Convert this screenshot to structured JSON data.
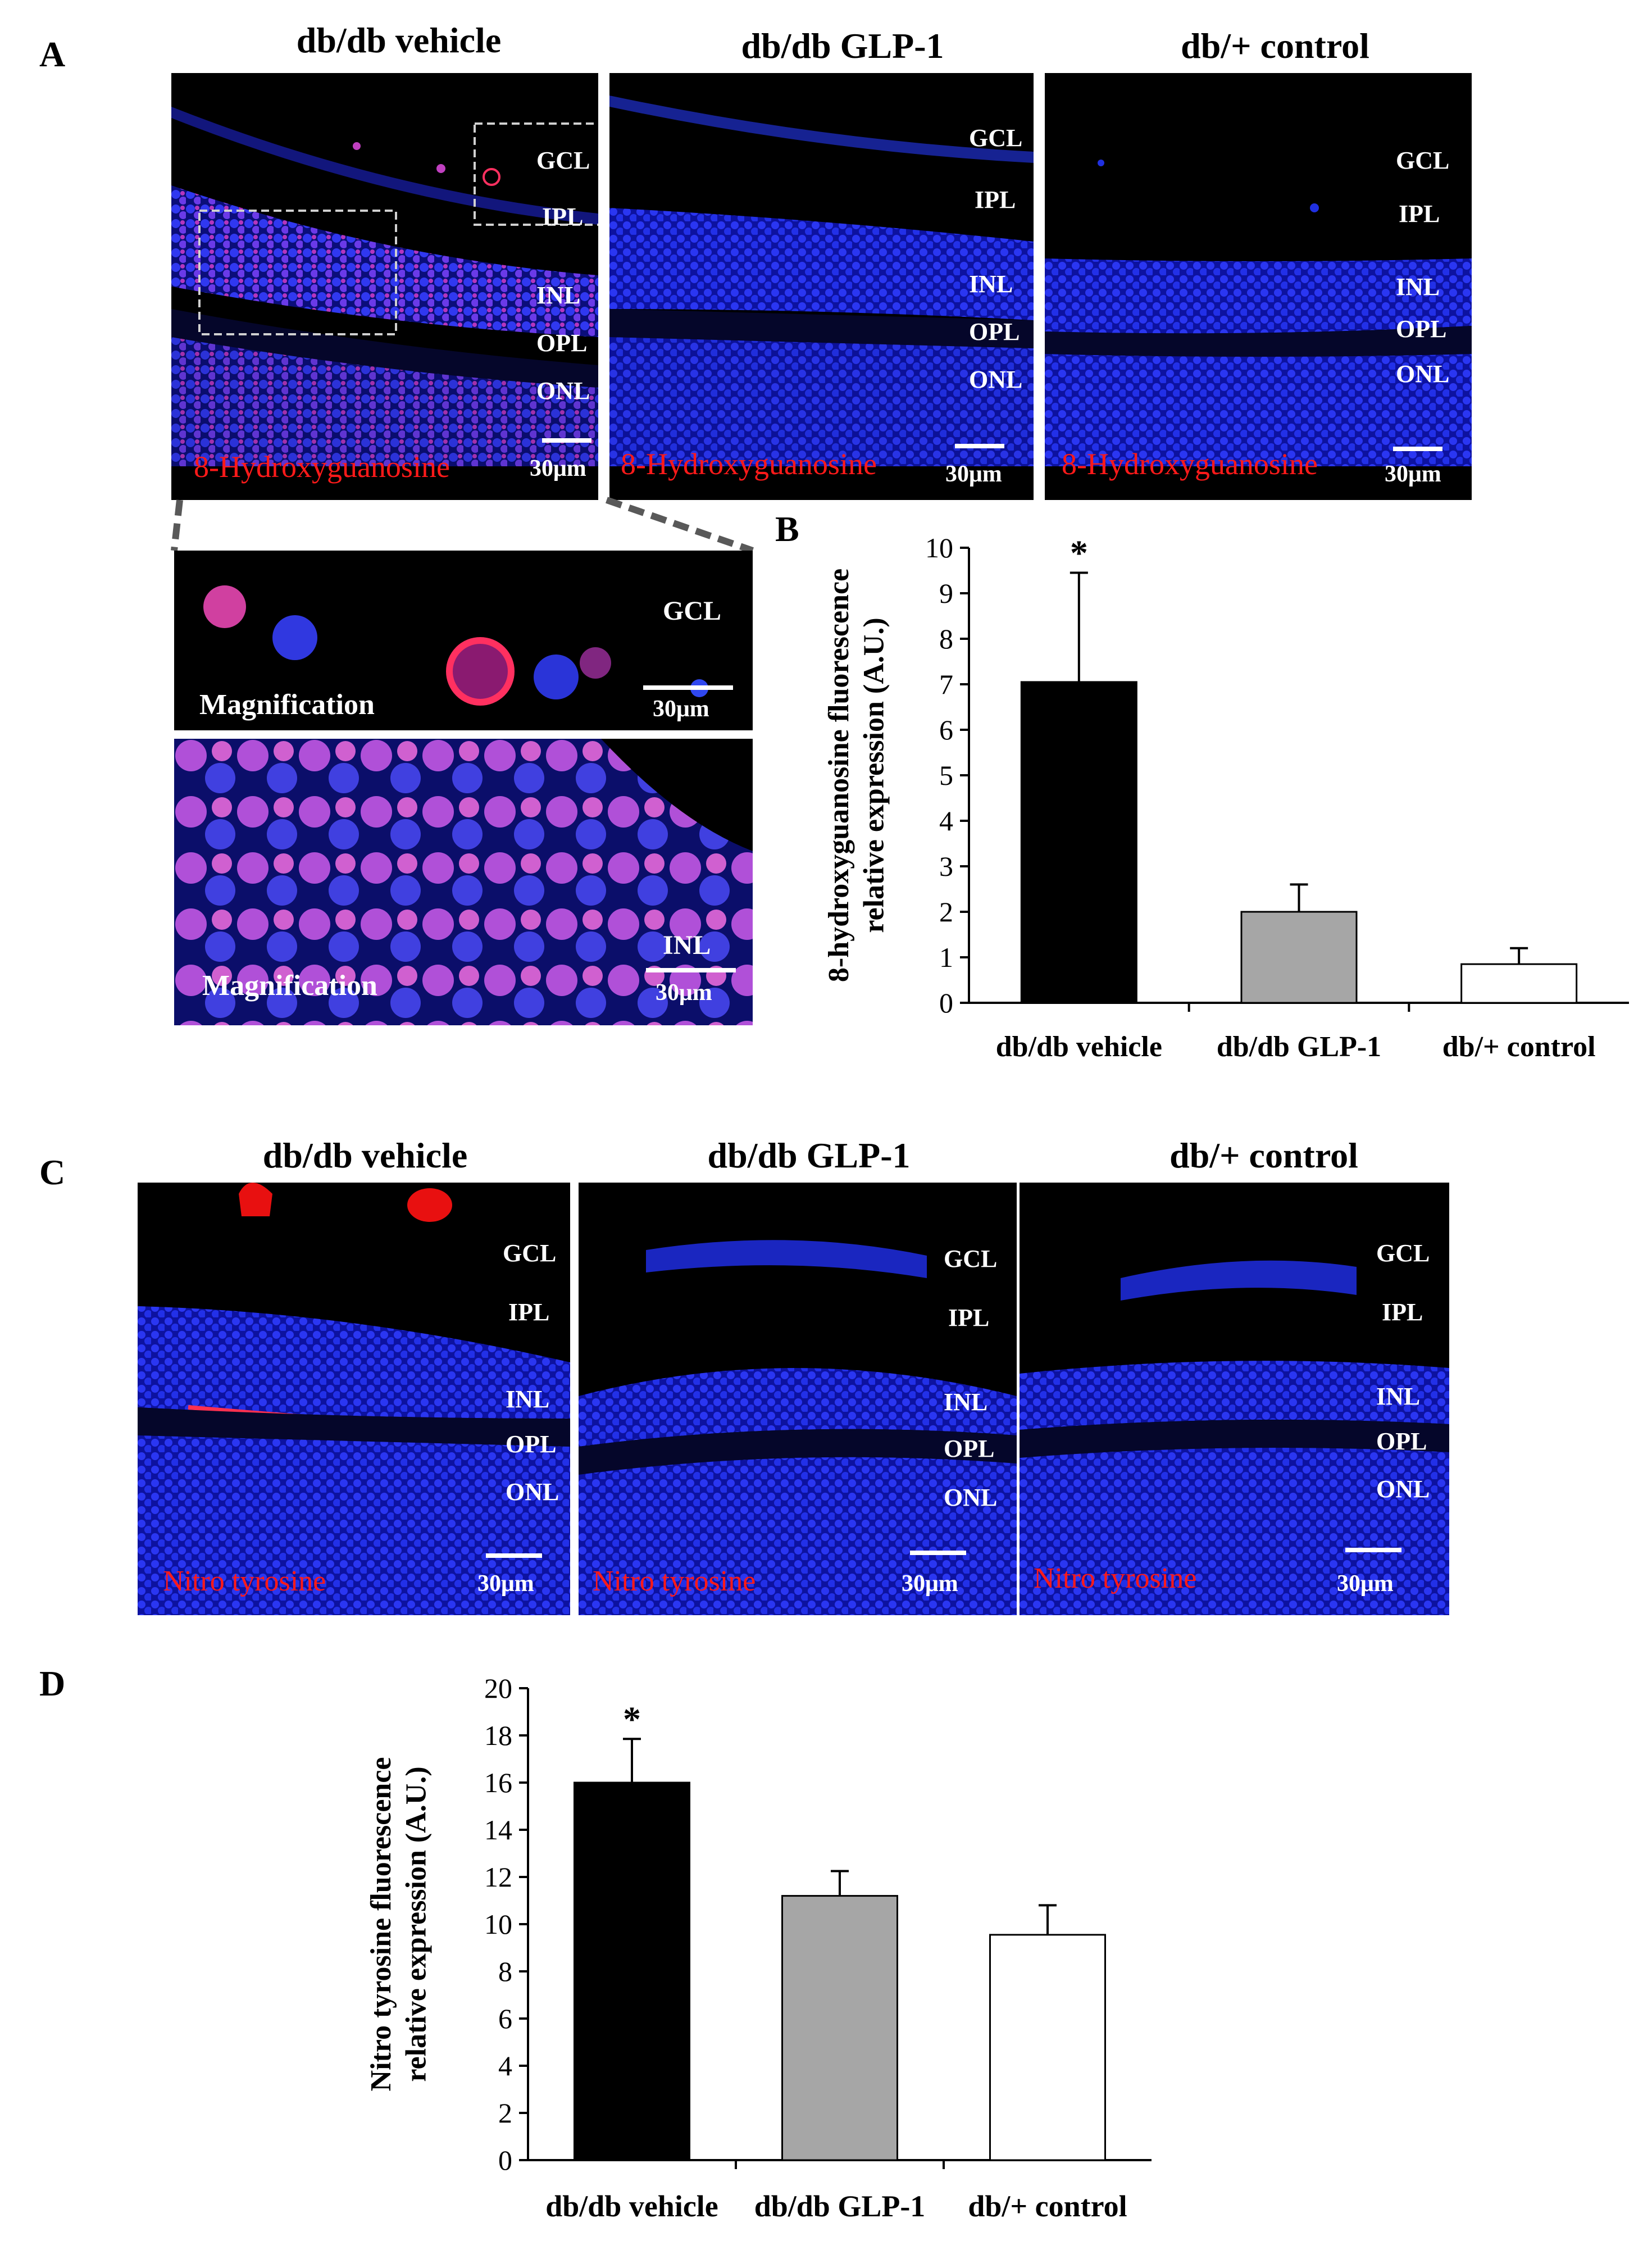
{
  "panels": {
    "A": {
      "letter": "A",
      "columns": [
        "db/db vehicle",
        "db/db GLP-1",
        "db/+ control"
      ],
      "layers": [
        "GCL",
        "IPL",
        "INL",
        "OPL",
        "ONL"
      ],
      "stain": "8-Hydroxyguanosine",
      "scale": "30μm",
      "magnification_label": "Magnification",
      "mag_layers": [
        "GCL",
        "INL"
      ]
    },
    "B": {
      "letter": "B"
    },
    "C": {
      "letter": "C",
      "columns": [
        "db/db vehicle",
        "db/db GLP-1",
        "db/+ control"
      ],
      "layers": [
        "GCL",
        "IPL",
        "INL",
        "OPL",
        "ONL"
      ],
      "stain": "Nitro tyrosine",
      "scale": "30μm"
    },
    "D": {
      "letter": "D"
    }
  },
  "colors": {
    "nucleus": "#1f2fe6",
    "stain": "#ff1a1a",
    "bar_vehicle": "#000000",
    "bar_glp1": "#a6a6a6",
    "bar_control": "#ffffff"
  },
  "chart_data": [
    {
      "type": "bar",
      "panel": "B",
      "categories": [
        "db/db vehicle",
        "db/db GLP-1",
        "db/+ control"
      ],
      "values": [
        7.05,
        2.0,
        0.85
      ],
      "errors": [
        2.4,
        0.6,
        0.35
      ],
      "significance": [
        "*",
        "",
        ""
      ],
      "ylabel_line1": "8-hydroxyguanosine fluorescence",
      "ylabel_line2": "relative expression  (A.U.)",
      "ylim": [
        0,
        10
      ],
      "yticks": [
        "0",
        "1",
        "2",
        "3",
        "4",
        "5",
        "6",
        "7",
        "8",
        "9",
        "10"
      ],
      "grid": false
    },
    {
      "type": "bar",
      "panel": "D",
      "categories": [
        "db/db vehicle",
        "db/db GLP-1",
        "db/+ control"
      ],
      "values": [
        16.0,
        11.2,
        9.55
      ],
      "errors": [
        1.85,
        1.05,
        1.25
      ],
      "significance": [
        "*",
        "",
        ""
      ],
      "ylabel_line1": "Nitro tyrosine fluorescence",
      "ylabel_line2": "relative expression (A.U.)",
      "ylim": [
        0,
        20
      ],
      "yticks": [
        "0",
        "2",
        "4",
        "6",
        "8",
        "10",
        "12",
        "14",
        "16",
        "18",
        "20"
      ],
      "grid": false
    }
  ]
}
